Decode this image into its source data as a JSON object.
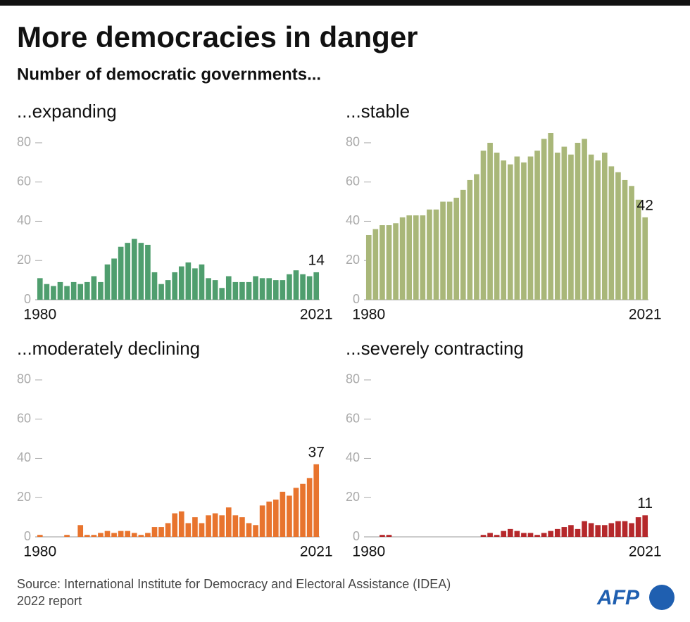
{
  "title": "More democracies in danger",
  "subtitle": "Number of democratic governments...",
  "source": "Source: International Institute for Democracy and Electoral Assistance (IDEA) 2022 report",
  "logo": "AFP",
  "chart_data": [
    {
      "type": "bar",
      "title": "...expanding",
      "color": "#4f9e6e",
      "categories": [
        "1980",
        null,
        null,
        null,
        null,
        null,
        null,
        null,
        null,
        null,
        null,
        null,
        null,
        null,
        null,
        null,
        null,
        null,
        null,
        null,
        null,
        null,
        null,
        null,
        null,
        null,
        null,
        null,
        null,
        null,
        null,
        null,
        null,
        null,
        null,
        null,
        null,
        null,
        null,
        null,
        null,
        "2021"
      ],
      "values": [
        11,
        8,
        7,
        9,
        7,
        9,
        8,
        9,
        12,
        9,
        18,
        21,
        27,
        29,
        31,
        29,
        28,
        14,
        8,
        10,
        14,
        17,
        19,
        16,
        18,
        11,
        10,
        6,
        12,
        9,
        9,
        9,
        12,
        11,
        11,
        10,
        10,
        13,
        15,
        13,
        12,
        14
      ],
      "ylim": [
        0,
        85
      ],
      "yticks": [
        0,
        20,
        40,
        60,
        80
      ]
    },
    {
      "type": "bar",
      "title": "...stable",
      "color": "#a9b779",
      "categories": [
        "1980",
        null,
        null,
        null,
        null,
        null,
        null,
        null,
        null,
        null,
        null,
        null,
        null,
        null,
        null,
        null,
        null,
        null,
        null,
        null,
        null,
        null,
        null,
        null,
        null,
        null,
        null,
        null,
        null,
        null,
        null,
        null,
        null,
        null,
        null,
        null,
        null,
        null,
        null,
        null,
        null,
        "2021"
      ],
      "values": [
        33,
        36,
        38,
        38,
        39,
        42,
        43,
        43,
        43,
        46,
        46,
        50,
        50,
        52,
        56,
        61,
        64,
        76,
        80,
        75,
        71,
        69,
        73,
        70,
        73,
        76,
        82,
        85,
        75,
        78,
        74,
        80,
        82,
        74,
        71,
        75,
        68,
        65,
        61,
        58,
        51,
        42
      ],
      "ylim": [
        0,
        85
      ],
      "yticks": [
        0,
        20,
        40,
        60,
        80
      ]
    },
    {
      "type": "bar",
      "title": "...moderately declining",
      "color": "#e8742e",
      "categories": [
        "1980",
        null,
        null,
        null,
        null,
        null,
        null,
        null,
        null,
        null,
        null,
        null,
        null,
        null,
        null,
        null,
        null,
        null,
        null,
        null,
        null,
        null,
        null,
        null,
        null,
        null,
        null,
        null,
        null,
        null,
        null,
        null,
        null,
        null,
        null,
        null,
        null,
        null,
        null,
        null,
        null,
        "2021"
      ],
      "values": [
        1,
        0,
        0,
        0,
        1,
        0,
        6,
        1,
        1,
        2,
        3,
        2,
        3,
        3,
        2,
        1,
        2,
        5,
        5,
        7,
        12,
        13,
        7,
        10,
        7,
        11,
        12,
        11,
        15,
        11,
        10,
        7,
        6,
        16,
        18,
        19,
        23,
        21,
        25,
        27,
        30,
        37
      ],
      "ylim": [
        0,
        85
      ],
      "yticks": [
        0,
        20,
        40,
        60,
        80
      ]
    },
    {
      "type": "bar",
      "title": "...severely contracting",
      "color": "#b5282b",
      "categories": [
        "1980",
        null,
        null,
        null,
        null,
        null,
        null,
        null,
        null,
        null,
        null,
        null,
        null,
        null,
        null,
        null,
        null,
        null,
        null,
        null,
        null,
        null,
        null,
        null,
        null,
        null,
        null,
        null,
        null,
        null,
        null,
        null,
        null,
        null,
        null,
        null,
        null,
        null,
        null,
        null,
        null,
        "2021"
      ],
      "values": [
        0,
        0,
        1,
        1,
        0,
        0,
        0,
        0,
        0,
        0,
        0,
        0,
        0,
        0,
        0,
        0,
        0,
        1,
        2,
        1,
        3,
        4,
        3,
        2,
        2,
        1,
        2,
        3,
        4,
        5,
        6,
        4,
        8,
        7,
        6,
        6,
        7,
        8,
        8,
        7,
        10,
        11
      ],
      "ylim": [
        0,
        85
      ],
      "yticks": [
        0,
        20,
        40,
        60,
        80
      ]
    }
  ]
}
